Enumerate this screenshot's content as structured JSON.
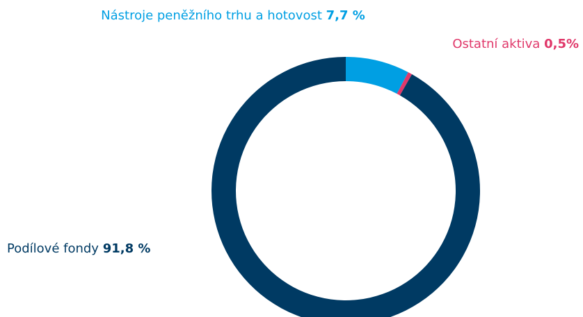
{
  "chart_data": {
    "type": "donut",
    "categories": [
      "Nástroje peněžního trhu a hotovost",
      "Ostatní aktiva",
      "Podílové fondy"
    ],
    "values": [
      7.7,
      0.5,
      91.8
    ],
    "value_labels": [
      "7,7 %",
      "0,5%",
      "91,8 %"
    ],
    "colors": [
      "#009fe3",
      "#e0386a",
      "#003a63"
    ]
  }
}
